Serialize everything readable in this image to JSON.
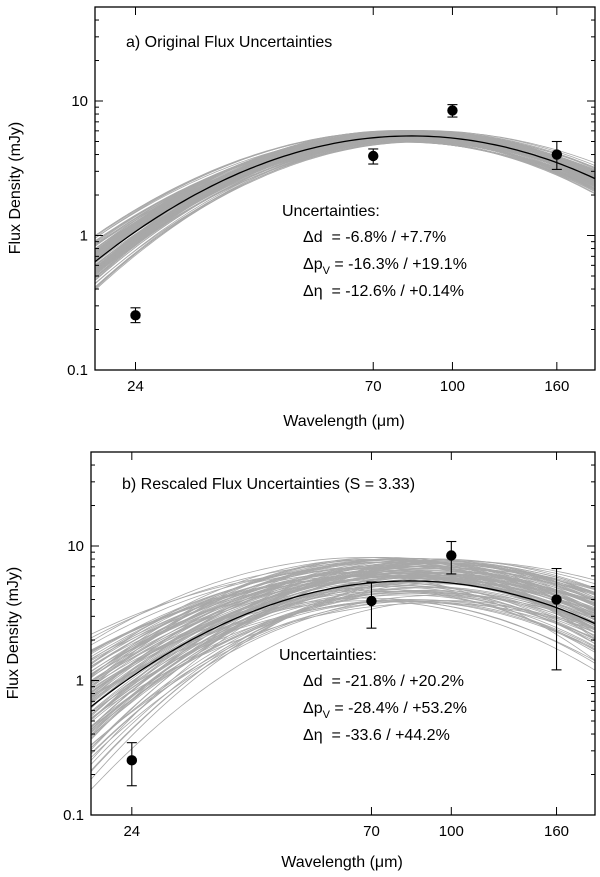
{
  "chart_data": [
    {
      "type": "line",
      "panel_id": "a",
      "title": "a) Original Flux Uncertainties",
      "xlabel_prefix": "Wavelength (",
      "xlabel_unit": "μm",
      "xlabel_suffix": ")",
      "ylabel": "Flux Density (mJy)",
      "xscale": "log",
      "yscale": "log",
      "xlim": [
        20,
        190
      ],
      "ylim": [
        0.1,
        50
      ],
      "x_ticks": [
        24,
        70,
        100,
        160
      ],
      "x_tick_labels": [
        "24",
        "70",
        "100",
        "160"
      ],
      "y_ticks": [
        0.1,
        1,
        10
      ],
      "y_tick_labels": [
        "0.1",
        "1",
        "10"
      ],
      "points": [
        {
          "x": 24,
          "y": 0.255,
          "err_low": 0.225,
          "err_high": 0.29
        },
        {
          "x": 70,
          "y": 3.9,
          "err_low": 3.4,
          "err_high": 4.4
        },
        {
          "x": 100,
          "y": 8.5,
          "err_low": 7.6,
          "err_high": 9.4
        },
        {
          "x": 160,
          "y": 4.0,
          "err_low": 3.1,
          "err_high": 5.0
        }
      ],
      "best_fit": {
        "peak_wavelength": 83,
        "peak_flux": 5.5,
        "curvature": 2.45
      },
      "monte_carlo_spread": {
        "peak_wavelength": [
          0.93,
          1.07
        ],
        "peak_flux": [
          0.9,
          1.1
        ],
        "curvature": [
          0.88,
          1.12
        ]
      },
      "annotation": {
        "heading": "Uncertainties:",
        "lines": [
          {
            "symbol": "Δd",
            "sub": "",
            "text": "  = -6.8% / +7.7%"
          },
          {
            "symbol": "Δp",
            "sub": "V",
            "text": " = -16.3% / +19.1%"
          },
          {
            "symbol": "Δη",
            "sub": "",
            "text": "  = -12.6% / +0.14%"
          }
        ]
      }
    },
    {
      "type": "line",
      "panel_id": "b",
      "title": "b) Rescaled Flux Uncertainties (S = 3.33)",
      "xlabel_prefix": "Wavelength (",
      "xlabel_unit": "μm",
      "xlabel_suffix": ")",
      "ylabel": "Flux Density (mJy)",
      "xscale": "log",
      "yscale": "log",
      "xlim": [
        20,
        190
      ],
      "ylim": [
        0.1,
        50
      ],
      "x_ticks": [
        24,
        70,
        100,
        160
      ],
      "x_tick_labels": [
        "24",
        "70",
        "100",
        "160"
      ],
      "y_ticks": [
        0.1,
        1,
        10
      ],
      "y_tick_labels": [
        "0.1",
        "1",
        "10"
      ],
      "points": [
        {
          "x": 24,
          "y": 0.255,
          "err_low": 0.165,
          "err_high": 0.345
        },
        {
          "x": 70,
          "y": 3.9,
          "err_low": 2.45,
          "err_high": 5.4
        },
        {
          "x": 100,
          "y": 8.5,
          "err_low": 6.2,
          "err_high": 10.8
        },
        {
          "x": 160,
          "y": 4.0,
          "err_low": 1.2,
          "err_high": 6.8
        }
      ],
      "best_fit": {
        "peak_wavelength": 83,
        "peak_flux": 5.5,
        "curvature": 2.45
      },
      "monte_carlo_spread": {
        "peak_wavelength": [
          0.8,
          1.2
        ],
        "peak_flux": [
          0.68,
          1.5
        ],
        "curvature": [
          0.7,
          1.3
        ]
      },
      "annotation": {
        "heading": "Uncertainties:",
        "lines": [
          {
            "symbol": "Δd",
            "sub": "",
            "text": "  = -21.8% / +20.2%"
          },
          {
            "symbol": "Δp",
            "sub": "V",
            "text": " = -28.4% / +53.2%"
          },
          {
            "symbol": "Δη",
            "sub": "",
            "text": "  = -33.6 / +44.2%"
          }
        ]
      }
    }
  ]
}
